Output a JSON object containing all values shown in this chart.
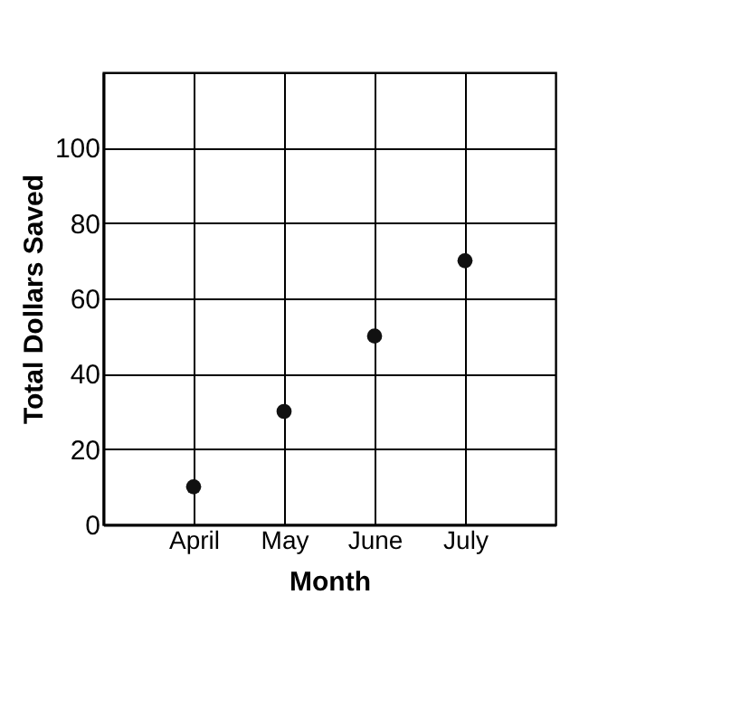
{
  "chart_data": {
    "type": "scatter",
    "xlabel": "Month",
    "ylabel": "Total Dollars Saved",
    "categories": [
      "April",
      "May",
      "June",
      "July"
    ],
    "series": [
      {
        "color": "#111111",
        "values": [
          10,
          30,
          50,
          70
        ]
      }
    ],
    "ylim": [
      0,
      120
    ],
    "yticks": [
      0,
      20,
      40,
      60,
      80,
      100,
      {
        "value": 120,
        "label": null
      }
    ],
    "grid": true,
    "marker": "circle"
  }
}
